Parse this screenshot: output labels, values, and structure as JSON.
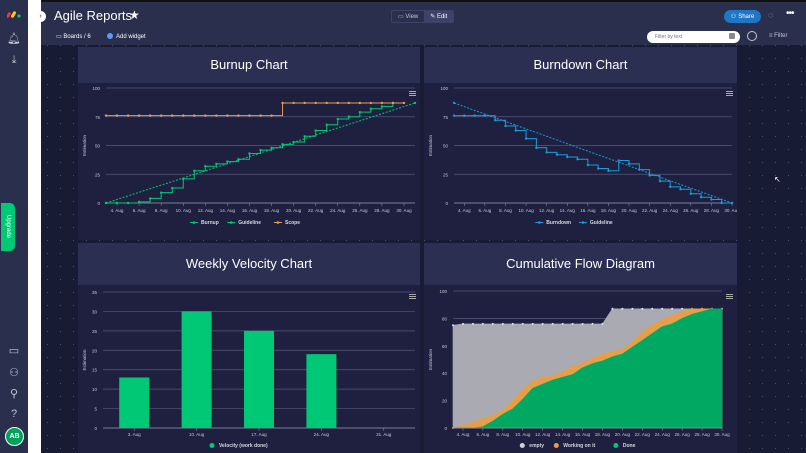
{
  "app": {
    "title": "Agile Reports",
    "view_label": "View",
    "edit_label": "Edit",
    "share_label": "Share",
    "boards_label": "Boards / 6",
    "add_widget_label": "Add widget",
    "filter_placeholder": "Filter by text",
    "filter_label": "Filter",
    "upgrade_label": "Upgrade",
    "avatar_initials": "AB"
  },
  "colors": {
    "green": "#00c875",
    "blue": "#1b9cd8",
    "orange": "#e59f4b",
    "grey": "#a9aab2",
    "grid": "#54577a"
  },
  "chart_data": [
    {
      "id": "burnup",
      "title": "Burnup Chart",
      "type": "line",
      "ylabel": "Estimation",
      "ylim": [
        0,
        100
      ],
      "yticks": [
        0,
        25,
        50,
        75,
        100
      ],
      "x_range": [
        "3. Aug",
        "31. Aug"
      ],
      "xticks": [
        "4. Aug",
        "6. Aug",
        "8. Aug",
        "10. Aug",
        "12. Aug",
        "14. Aug",
        "16. Aug",
        "18. Aug",
        "20. Aug",
        "22. Aug",
        "24. Aug",
        "26. Aug",
        "28. Aug",
        "30. Aug"
      ],
      "series": [
        {
          "name": "Burnup",
          "style": "step",
          "color": "#00c875",
          "x": [
            3,
            4,
            5,
            6,
            7,
            8,
            9,
            10,
            11,
            12,
            13,
            14,
            15,
            16,
            17,
            18,
            19,
            20,
            21,
            22,
            23,
            24,
            25,
            26,
            27,
            28,
            29
          ],
          "y": [
            0,
            0,
            0,
            1,
            4,
            9,
            13,
            21,
            28,
            32,
            34,
            36,
            38,
            43,
            46,
            48,
            51,
            53,
            58,
            63,
            68,
            73,
            75,
            79,
            82,
            84,
            87
          ]
        },
        {
          "name": "Guideline",
          "style": "dashed",
          "color": "#00c875",
          "x": [
            3,
            31
          ],
          "y": [
            0,
            87
          ]
        },
        {
          "name": "Scope",
          "style": "step",
          "color": "#e59f4b",
          "x": [
            3,
            4,
            5,
            6,
            7,
            8,
            9,
            10,
            11,
            12,
            13,
            14,
            15,
            16,
            17,
            18,
            19,
            20,
            21,
            22,
            23,
            24,
            25,
            26,
            27,
            28,
            29,
            30
          ],
          "y": [
            76,
            76,
            76,
            76,
            76,
            76,
            76,
            76,
            76,
            76,
            76,
            76,
            76,
            76,
            76,
            76,
            87,
            87,
            87,
            87,
            87,
            87,
            87,
            87,
            87,
            87,
            87,
            87
          ]
        }
      ]
    },
    {
      "id": "burndown",
      "title": "Burndown Chart",
      "type": "line",
      "ylabel": "Estimation",
      "ylim": [
        0,
        100
      ],
      "yticks": [
        0,
        25,
        50,
        75,
        100
      ],
      "x_range": [
        "3. Aug",
        "30. Aug"
      ],
      "xticks": [
        "4. Aug",
        "6. Aug",
        "8. Aug",
        "10. Aug",
        "12. Aug",
        "14. Aug",
        "16. Aug",
        "18. Aug",
        "20. Aug",
        "22. Aug",
        "24. Aug",
        "26. Aug",
        "28. Aug",
        "30. Aug"
      ],
      "series": [
        {
          "name": "Burndown",
          "style": "step",
          "color": "#1b9cd8",
          "x": [
            3,
            4,
            5,
            6,
            7,
            8,
            9,
            10,
            11,
            12,
            13,
            14,
            15,
            16,
            17,
            18,
            19,
            20,
            21,
            22,
            23,
            24,
            25,
            26,
            27,
            28,
            29,
            30
          ],
          "y": [
            76,
            76,
            76,
            76,
            72,
            67,
            63,
            56,
            48,
            44,
            42,
            40,
            38,
            33,
            30,
            28,
            37,
            34,
            29,
            24,
            19,
            14,
            12,
            8,
            5,
            3,
            0,
            0
          ]
        },
        {
          "name": "Guideline",
          "style": "dashed",
          "color": "#1b9cd8",
          "x": [
            3,
            30
          ],
          "y": [
            87,
            0
          ]
        }
      ]
    },
    {
      "id": "velocity",
      "title": "Weekly Velocity Chart",
      "type": "bar",
      "ylabel": "Estimation",
      "ylim": [
        0,
        35
      ],
      "yticks": [
        0,
        5,
        10,
        15,
        20,
        25,
        30,
        35
      ],
      "categories": [
        "3. Aug",
        "10. Aug",
        "17. Aug",
        "24. Aug",
        "31. Aug"
      ],
      "series": [
        {
          "name": "Velocity (work done)",
          "color": "#00c875",
          "values": [
            13,
            30,
            25,
            19,
            0
          ]
        }
      ]
    },
    {
      "id": "cfd",
      "title": "Cumulative Flow Diagram",
      "type": "area",
      "ylabel": "Estimation",
      "ylim": [
        0,
        100
      ],
      "yticks": [
        0,
        20,
        40,
        60,
        80,
        100
      ],
      "x_range": [
        "3. Aug",
        "30. Aug"
      ],
      "xticks": [
        "4. Aug",
        "6. Aug",
        "8. Aug",
        "10. Aug",
        "12. Aug",
        "14. Aug",
        "16. Aug",
        "18. Aug",
        "20. Aug",
        "22. Aug",
        "24. Aug",
        "26. Aug",
        "28. Aug",
        "30. Aug"
      ],
      "x": [
        3,
        4,
        5,
        6,
        7,
        8,
        9,
        10,
        11,
        12,
        13,
        14,
        15,
        16,
        17,
        18,
        19,
        20,
        21,
        22,
        23,
        24,
        25,
        26,
        27,
        28,
        29,
        30
      ],
      "series": [
        {
          "name": "empty",
          "color": "#a9aab2",
          "cumulative": [
            75,
            76,
            76,
            76,
            76,
            76,
            76,
            76,
            76,
            76,
            76,
            76,
            76,
            76,
            76,
            76,
            87,
            87,
            87,
            87,
            87,
            87,
            87,
            87,
            87,
            87,
            87,
            87
          ]
        },
        {
          "name": "Working on it",
          "color": "#e59f4b",
          "cumulative": [
            0,
            2,
            4,
            7,
            9,
            13,
            20,
            28,
            34,
            37,
            38,
            41,
            45,
            47,
            51,
            54,
            56,
            57,
            63,
            70,
            75,
            79,
            82,
            85,
            87,
            87,
            87,
            87
          ]
        },
        {
          "name": "Done",
          "color": "#00a862",
          "cumulative": [
            0,
            0,
            0,
            1,
            5,
            10,
            14,
            21,
            29,
            32,
            35,
            37,
            39,
            44,
            47,
            49,
            52,
            54,
            59,
            64,
            69,
            74,
            76,
            80,
            83,
            85,
            87,
            87
          ]
        }
      ]
    }
  ]
}
